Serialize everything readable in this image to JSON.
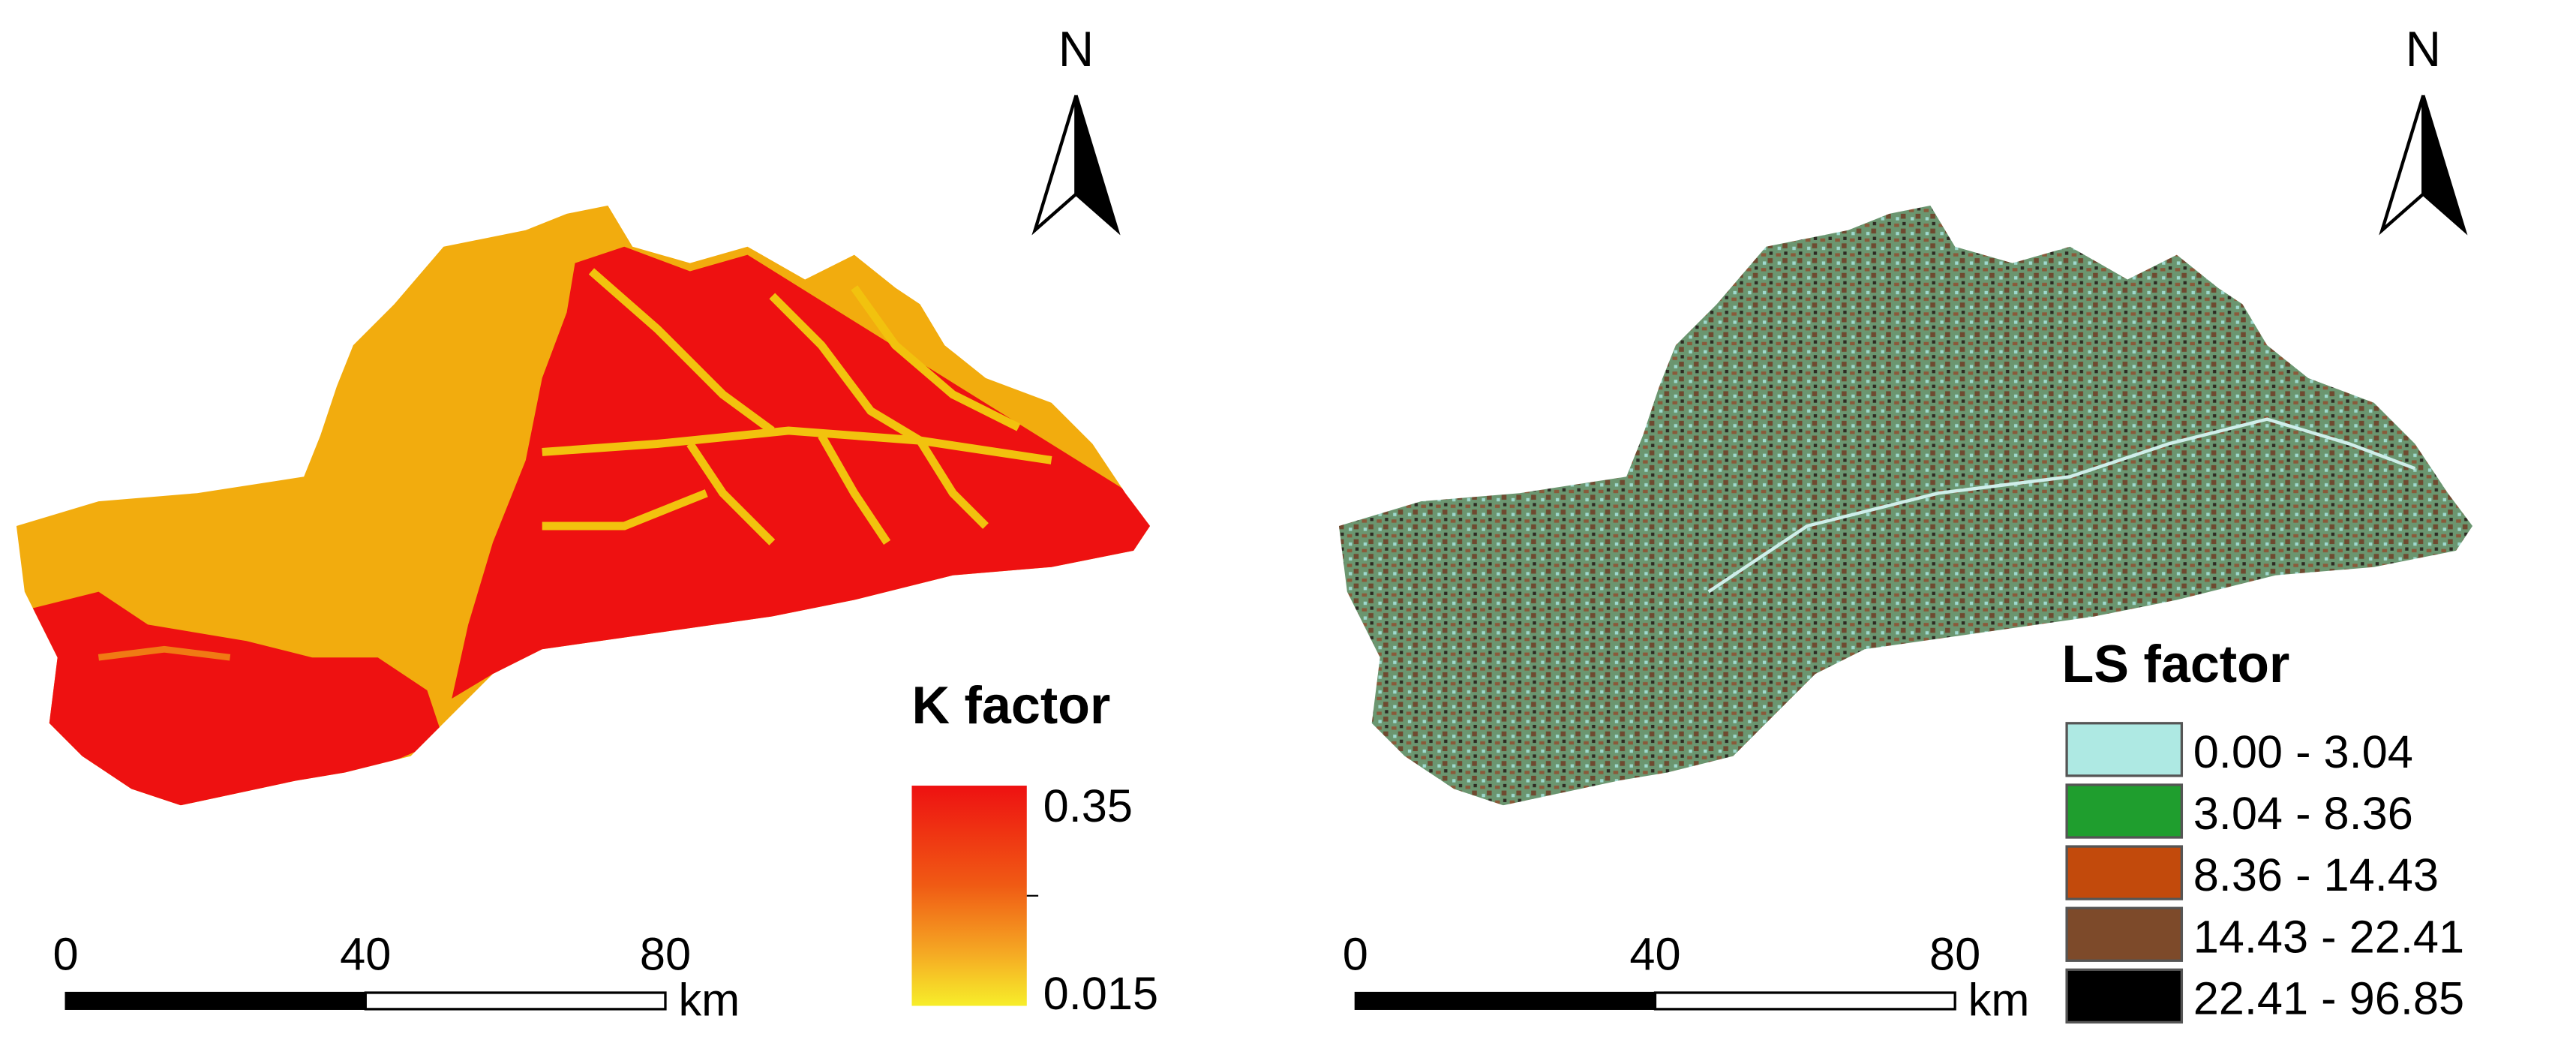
{
  "maps": [
    {
      "north": "N",
      "legend": {
        "title": "K factor",
        "max": "0.35",
        "min": "0.015"
      },
      "scale_bar": {
        "ticks": [
          "0",
          "40",
          "80"
        ],
        "unit": "km"
      }
    },
    {
      "north": "N",
      "legend": {
        "title": "LS factor",
        "classes": [
          {
            "label": "0.00 - 3.04",
            "color": "#aee9e3"
          },
          {
            "label": "3.04 - 8.36",
            "color": "#1f9e2e"
          },
          {
            "label": "8.36 - 14.43",
            "color": "#c24a0c"
          },
          {
            "label": "14.43 - 22.41",
            "color": "#7d4a2a"
          },
          {
            "label": "22.41 - 96.85",
            "color": "#000000"
          }
        ]
      },
      "scale_bar": {
        "ticks": [
          "0",
          "40",
          "80"
        ],
        "unit": "km"
      }
    }
  ]
}
